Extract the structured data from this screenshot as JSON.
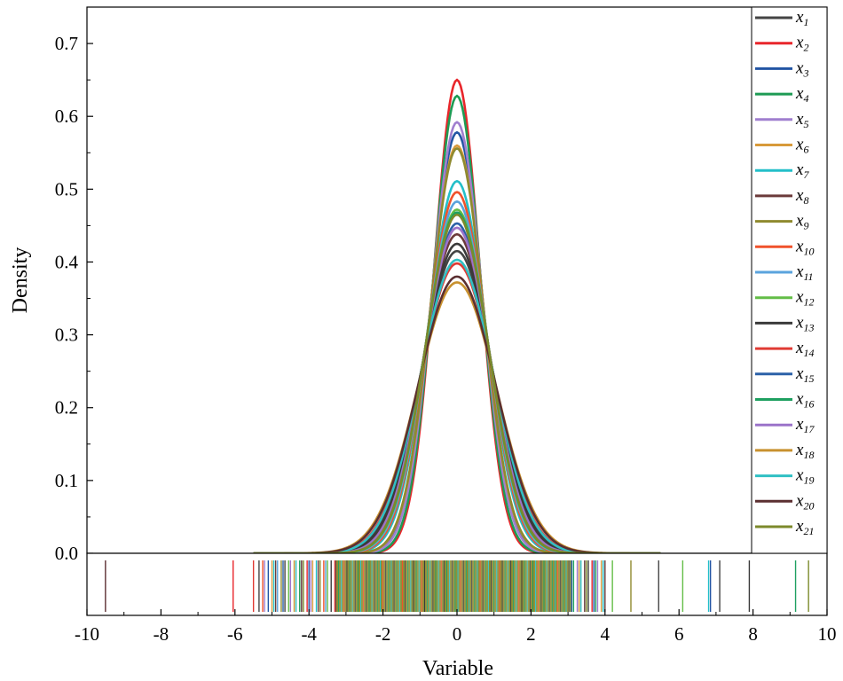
{
  "chart_data": {
    "type": "line",
    "title": "",
    "xlabel": "Variable",
    "ylabel": "Density",
    "xlim": [
      -10,
      10
    ],
    "ylim": [
      0,
      0.75
    ],
    "x_ticks": [
      "-10",
      "-8",
      "-6",
      "-4",
      "-2",
      "0",
      "2",
      "4",
      "6",
      "8",
      "10"
    ],
    "y_ticks": [
      "0.0",
      "0.1",
      "0.2",
      "0.3",
      "0.4",
      "0.5",
      "0.6",
      "0.7"
    ],
    "x_tick_values": [
      -10,
      -8,
      -6,
      -4,
      -2,
      0,
      2,
      4,
      6,
      8,
      10
    ],
    "y_tick_values": [
      0,
      0.1,
      0.2,
      0.3,
      0.4,
      0.5,
      0.6,
      0.7
    ],
    "grid": false,
    "legend_position": "right",
    "support": [
      -5.5,
      5.5
    ],
    "series": [
      {
        "name_base": "x",
        "name_sub": "1",
        "peak": 0.415,
        "color": "#444444"
      },
      {
        "name_base": "x",
        "name_sub": "2",
        "peak": 0.65,
        "color": "#e8262b"
      },
      {
        "name_base": "x",
        "name_sub": "3",
        "peak": 0.578,
        "color": "#2255a4"
      },
      {
        "name_base": "x",
        "name_sub": "4",
        "peak": 0.628,
        "color": "#1e9b54"
      },
      {
        "name_base": "x",
        "name_sub": "5",
        "peak": 0.592,
        "color": "#a07fcf"
      },
      {
        "name_base": "x",
        "name_sub": "6",
        "peak": 0.56,
        "color": "#d89a3a"
      },
      {
        "name_base": "x",
        "name_sub": "7",
        "peak": 0.511,
        "color": "#23bfc9"
      },
      {
        "name_base": "x",
        "name_sub": "8",
        "peak": 0.438,
        "color": "#6b3a3a"
      },
      {
        "name_base": "x",
        "name_sub": "9",
        "peak": 0.556,
        "color": "#8f8a2f"
      },
      {
        "name_base": "x",
        "name_sub": "10",
        "peak": 0.496,
        "color": "#f0522b"
      },
      {
        "name_base": "x",
        "name_sub": "11",
        "peak": 0.483,
        "color": "#5aa3dd"
      },
      {
        "name_base": "x",
        "name_sub": "12",
        "peak": 0.472,
        "color": "#63bd47"
      },
      {
        "name_base": "x",
        "name_sub": "13",
        "peak": 0.425,
        "color": "#3a3a3a"
      },
      {
        "name_base": "x",
        "name_sub": "14",
        "peak": 0.398,
        "color": "#e03b34"
      },
      {
        "name_base": "x",
        "name_sub": "15",
        "peak": 0.453,
        "color": "#2b61a8"
      },
      {
        "name_base": "x",
        "name_sub": "16",
        "peak": 0.468,
        "color": "#1ea060"
      },
      {
        "name_base": "x",
        "name_sub": "17",
        "peak": 0.447,
        "color": "#9b73c9"
      },
      {
        "name_base": "x",
        "name_sub": "18",
        "peak": 0.372,
        "color": "#c8912f"
      },
      {
        "name_base": "x",
        "name_sub": "19",
        "peak": 0.403,
        "color": "#30c0c4"
      },
      {
        "name_base": "x",
        "name_sub": "20",
        "peak": 0.38,
        "color": "#5b2f31"
      },
      {
        "name_base": "x",
        "name_sub": "21",
        "peak": 0.465,
        "color": "#7c8a2b"
      }
    ],
    "rug": {
      "values": [
        -9.5,
        -6.05,
        -5.5,
        -5.35,
        -5.25,
        -5.2,
        -5.1,
        -5.0,
        -4.95,
        -4.9,
        -4.85,
        -4.75,
        -4.7,
        -4.65,
        -4.55,
        -4.5,
        -4.4,
        -4.35,
        -4.25,
        -4.2,
        -4.15,
        -4.05,
        -4.0,
        -3.95,
        -3.9,
        -3.8,
        -3.75,
        -3.7,
        -3.6,
        -3.55,
        -3.5,
        -3.4,
        -3.3,
        3.1,
        3.15,
        3.25,
        3.3,
        3.35,
        3.45,
        3.5,
        3.55,
        3.65,
        3.7,
        3.75,
        3.8,
        3.9,
        3.95,
        4.0,
        4.2,
        4.7,
        5.45,
        6.1,
        6.8,
        6.85,
        7.1,
        7.9,
        9.15,
        9.5
      ],
      "colors": [
        "#5b2f31",
        "#e8262b",
        "#e03b34",
        "#444444",
        "#f0522b",
        "#a07fcf",
        "#2255a4",
        "#d89a3a",
        "#23bfc9",
        "#6b3a3a",
        "#5aa3dd",
        "#8f8a2f",
        "#2b61a8",
        "#444444",
        "#63bd47",
        "#9b73c9",
        "#c8912f",
        "#30c0c4",
        "#1e9b54",
        "#5b2f31",
        "#7c8a2b",
        "#e8262b",
        "#2255a4",
        "#a07fcf",
        "#d89a3a",
        "#23bfc9",
        "#6b3a3a",
        "#8f8a2f",
        "#f0522b",
        "#5aa3dd",
        "#63bd47",
        "#3a3a3a",
        "#e03b34",
        "#2b61a8",
        "#1ea060",
        "#9b73c9",
        "#c8912f",
        "#30c0c4",
        "#5b2f31",
        "#7c8a2b",
        "#444444",
        "#e8262b",
        "#2255a4",
        "#1e9b54",
        "#a07fcf",
        "#d89a3a",
        "#23bfc9",
        "#6b3a3a",
        "#63bd47",
        "#8f8a2f",
        "#444444",
        "#63bd47",
        "#23bfc9",
        "#2255a4",
        "#444444",
        "#3a3a3a",
        "#1ea060",
        "#7c8a2b"
      ],
      "dense_range": [
        -3.3,
        3.1
      ],
      "dense_color": "#8b8a2e"
    }
  }
}
